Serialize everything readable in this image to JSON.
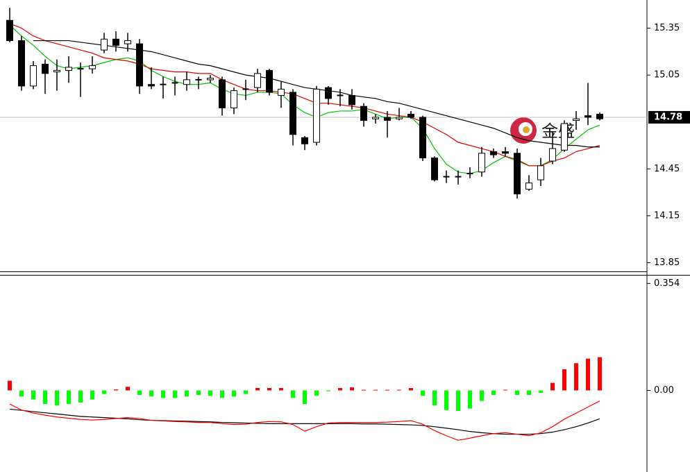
{
  "chart_data": [
    {
      "type": "candlestick",
      "open": [
        15.4,
        15.27,
        14.98,
        15.12,
        15.07,
        15.08,
        15.09,
        15.09,
        15.21,
        15.28,
        15.25,
        15.25,
        14.99,
        14.99,
        15.0,
        14.99,
        15.02,
        15.02,
        15.02,
        14.84,
        14.96,
        14.97,
        15.08,
        14.92,
        14.94,
        14.65,
        14.62,
        14.97,
        14.92,
        14.92,
        14.85,
        14.77,
        14.78,
        14.77,
        14.8,
        14.78,
        14.52,
        14.4,
        14.4,
        14.42,
        14.43,
        14.56,
        14.56,
        14.55,
        14.32,
        14.38,
        14.5,
        14.57,
        14.76,
        14.79,
        14.8
      ],
      "high": [
        15.48,
        15.3,
        15.14,
        15.15,
        15.15,
        15.17,
        15.13,
        15.17,
        15.32,
        15.33,
        15.32,
        15.28,
        15.1,
        15.04,
        15.04,
        15.07,
        15.04,
        15.05,
        15.04,
        14.97,
        15.02,
        15.09,
        15.09,
        15.01,
        14.96,
        14.66,
        14.98,
        14.98,
        14.96,
        14.96,
        14.87,
        14.8,
        14.82,
        14.84,
        14.82,
        14.79,
        14.53,
        14.44,
        14.44,
        14.46,
        14.59,
        14.58,
        14.59,
        14.58,
        14.41,
        14.52,
        14.69,
        14.76,
        14.82,
        15.0,
        14.81
      ],
      "low": [
        15.26,
        14.95,
        14.96,
        14.93,
        14.95,
        15.0,
        14.91,
        15.06,
        15.19,
        15.2,
        15.2,
        14.93,
        14.96,
        14.9,
        14.92,
        14.95,
        14.96,
        15.0,
        14.79,
        14.8,
        14.89,
        14.94,
        14.92,
        14.84,
        14.6,
        14.57,
        14.6,
        14.86,
        14.85,
        14.83,
        14.72,
        14.74,
        14.65,
        14.76,
        14.77,
        14.5,
        14.37,
        14.36,
        14.35,
        14.39,
        14.4,
        14.52,
        14.53,
        14.26,
        14.31,
        14.34,
        14.48,
        14.56,
        14.7,
        14.73,
        14.76
      ],
      "close": [
        15.27,
        14.98,
        15.11,
        15.06,
        15.08,
        15.1,
        15.09,
        15.11,
        15.28,
        15.24,
        15.27,
        14.98,
        14.98,
        14.99,
        15.0,
        15.02,
        15.02,
        15.03,
        14.84,
        14.95,
        14.96,
        15.06,
        14.94,
        14.96,
        14.67,
        14.61,
        14.96,
        14.9,
        14.92,
        14.86,
        14.76,
        14.78,
        14.76,
        14.78,
        14.78,
        14.52,
        14.38,
        14.4,
        14.4,
        14.42,
        14.55,
        14.54,
        14.55,
        14.29,
        14.36,
        14.47,
        14.58,
        14.74,
        14.77,
        14.78,
        14.77
      ],
      "series": [
        {
          "color": "#00c000",
          "values": [
            15.37,
            15.3,
            15.24,
            15.17,
            15.11,
            15.09,
            15.1,
            15.11,
            15.13,
            15.15,
            15.16,
            15.14,
            15.08,
            15.04,
            15.01,
            14.99,
            14.99,
            15.0,
            14.96,
            14.93,
            14.92,
            14.94,
            14.94,
            14.93,
            14.86,
            14.81,
            14.78,
            14.81,
            14.82,
            14.82,
            14.83,
            14.8,
            14.77,
            14.78,
            14.78,
            14.71,
            14.58,
            14.48,
            14.43,
            14.42,
            14.44,
            14.49,
            14.53,
            14.5,
            14.47,
            14.47,
            14.51,
            14.58,
            14.64,
            14.7,
            14.73
          ]
        },
        {
          "color": "#e00000",
          "values": [
            15.38,
            15.35,
            15.3,
            15.27,
            15.25,
            15.23,
            15.21,
            15.19,
            15.16,
            15.15,
            15.14,
            15.12,
            15.09,
            15.08,
            15.07,
            15.07,
            15.06,
            15.06,
            15.02,
            14.99,
            14.96,
            14.95,
            14.95,
            14.94,
            14.93,
            14.9,
            14.87,
            14.87,
            14.86,
            14.85,
            14.84,
            14.82,
            14.8,
            14.79,
            14.78,
            14.75,
            14.71,
            14.67,
            14.62,
            14.6,
            14.58,
            14.56,
            14.53,
            14.51,
            14.47,
            14.47,
            14.5,
            14.52,
            14.56,
            14.58,
            14.6
          ]
        },
        {
          "color": "#000000",
          "values": [
            null,
            null,
            15.27,
            15.27,
            15.27,
            15.27,
            15.26,
            15.25,
            15.24,
            15.23,
            15.22,
            15.21,
            15.2,
            15.18,
            15.16,
            15.14,
            15.12,
            15.11,
            15.09,
            15.07,
            15.05,
            15.04,
            15.03,
            15.01,
            14.99,
            14.97,
            14.96,
            14.95,
            14.94,
            14.92,
            14.91,
            14.9,
            14.88,
            14.87,
            14.85,
            14.83,
            14.81,
            14.79,
            14.77,
            14.75,
            14.73,
            14.71,
            14.68,
            14.65,
            14.63,
            14.62,
            14.61,
            14.6,
            14.6,
            14.59,
            14.59
          ]
        }
      ],
      "ylim": [
        13.79,
        15.53
      ],
      "yticks": [
        15.35,
        15.05,
        14.45,
        14.15,
        13.85
      ],
      "last_price": 14.78,
      "watermark": "金盛"
    },
    {
      "type": "macd",
      "values": [
        0.032,
        -0.02,
        -0.03,
        -0.045,
        -0.05,
        -0.045,
        -0.04,
        -0.03,
        -0.012,
        0.003,
        0.012,
        -0.015,
        -0.02,
        -0.025,
        -0.025,
        -0.02,
        -0.015,
        -0.018,
        -0.025,
        -0.02,
        -0.012,
        0.008,
        0.008,
        0.008,
        -0.025,
        -0.045,
        -0.018,
        -0.003,
        0.008,
        0.01,
        0.002,
        0.002,
        0.002,
        0.002,
        0.008,
        -0.018,
        -0.05,
        -0.065,
        -0.068,
        -0.06,
        -0.035,
        -0.015,
        0.002,
        -0.015,
        -0.015,
        -0.008,
        0.025,
        0.07,
        0.09,
        0.105,
        0.11
      ],
      "up_color": "#ff0000",
      "down_color": "#00ff00",
      "series": [
        {
          "color": "#000000",
          "values": [
            -0.062,
            -0.066,
            -0.07,
            -0.074,
            -0.078,
            -0.082,
            -0.086,
            -0.088,
            -0.09,
            -0.092,
            -0.094,
            -0.097,
            -0.099,
            -0.1,
            -0.101,
            -0.102,
            -0.103,
            -0.104,
            -0.106,
            -0.107,
            -0.108,
            -0.109,
            -0.11,
            -0.11,
            -0.11,
            -0.11,
            -0.11,
            -0.11,
            -0.11,
            -0.11,
            -0.111,
            -0.111,
            -0.112,
            -0.113,
            -0.114,
            -0.116,
            -0.12,
            -0.125,
            -0.13,
            -0.136,
            -0.14,
            -0.143,
            -0.145,
            -0.145,
            -0.145,
            -0.143,
            -0.138,
            -0.13,
            -0.12,
            -0.108,
            -0.094
          ]
        },
        {
          "color": "#ff0000",
          "values": [
            -0.045,
            -0.065,
            -0.075,
            -0.082,
            -0.088,
            -0.092,
            -0.096,
            -0.098,
            -0.096,
            -0.093,
            -0.09,
            -0.093,
            -0.099,
            -0.101,
            -0.103,
            -0.104,
            -0.106,
            -0.106,
            -0.11,
            -0.113,
            -0.112,
            -0.106,
            -0.103,
            -0.104,
            -0.113,
            -0.135,
            -0.12,
            -0.108,
            -0.106,
            -0.106,
            -0.106,
            -0.106,
            -0.105,
            -0.103,
            -0.1,
            -0.112,
            -0.133,
            -0.15,
            -0.165,
            -0.158,
            -0.15,
            -0.143,
            -0.14,
            -0.145,
            -0.15,
            -0.14,
            -0.12,
            -0.095,
            -0.075,
            -0.055,
            -0.035
          ]
        }
      ],
      "ylim": [
        -0.27,
        0.38
      ],
      "yticks": [
        0.354,
        {
          "value": 0,
          "label": "0.00"
        }
      ]
    }
  ]
}
